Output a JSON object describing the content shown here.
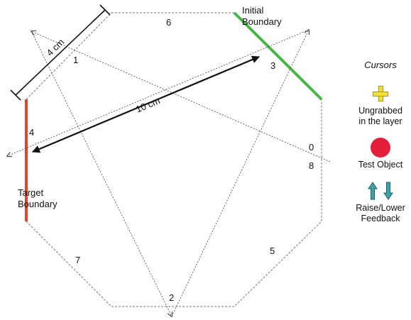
{
  "labels": {
    "initial_boundary": [
      "Initial",
      "Boundary"
    ],
    "target_boundary": [
      "Target",
      "Boundary"
    ],
    "dist_4cm": "4 cm",
    "dist_10cm": "10 cm",
    "seg_6": "6",
    "seg_1": "1",
    "seg_3": "3",
    "seg_4": "4",
    "seg_0": "0",
    "seg_8": "8",
    "seg_7": "7",
    "seg_5": "5",
    "seg_2": "2"
  },
  "legend": {
    "title": "Cursors",
    "items": [
      {
        "label": [
          "Ungrabbed",
          "in the layer"
        ],
        "icon": "yellow-plus-cursor-icon"
      },
      {
        "label": [
          "Test Object"
        ],
        "icon": "red-dot-icon"
      },
      {
        "label": [
          "Raise/Lower",
          "Feedback"
        ],
        "icon": "up-down-arrows-icon"
      }
    ]
  },
  "colors": {
    "initial_boundary": "#48b54a",
    "target_boundary": "#e0452b",
    "cursor_plus": "#f1e03a",
    "test_object": "#e2203b",
    "feedback_arrows": "#3fa0aa"
  }
}
